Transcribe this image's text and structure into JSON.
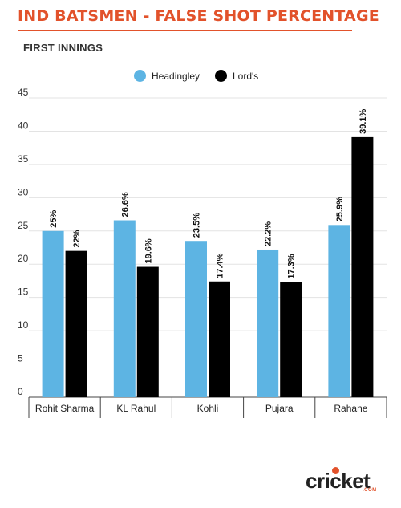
{
  "header": {
    "title": "IND BATSMEN - FALSE SHOT PERCENTAGE",
    "subtitle": "FIRST INNINGS"
  },
  "legend": [
    {
      "label": "Headingley",
      "color": "#5db4e3"
    },
    {
      "label": "Lord's",
      "color": "#000000"
    }
  ],
  "brand": {
    "logo_text": "cricket",
    "logo_sub": ".COM",
    "accent": "#e2522b"
  },
  "chart_data": {
    "type": "bar",
    "title": "IND BATSMEN - FALSE SHOT PERCENTAGE",
    "subtitle": "FIRST INNINGS",
    "categories": [
      "Rohit Sharma",
      "KL Rahul",
      "Kohli",
      "Pujara",
      "Rahane"
    ],
    "series": [
      {
        "name": "Headingley",
        "color": "#5db4e3",
        "values": [
          25,
          26.6,
          23.5,
          22.2,
          25.9
        ],
        "labels": [
          "25%",
          "26.6%",
          "23.5%",
          "22.2%",
          "25.9%"
        ]
      },
      {
        "name": "Lord's",
        "color": "#000000",
        "values": [
          22,
          19.6,
          17.4,
          17.3,
          39.1
        ],
        "labels": [
          "22%",
          "19.6%",
          "17.4%",
          "17.3%",
          "39.1%"
        ]
      }
    ],
    "ylim": [
      0,
      45
    ],
    "yticks": [
      0,
      5,
      10,
      15,
      20,
      25,
      30,
      35,
      40,
      45
    ],
    "grid": true,
    "legend_position": "top-center"
  }
}
